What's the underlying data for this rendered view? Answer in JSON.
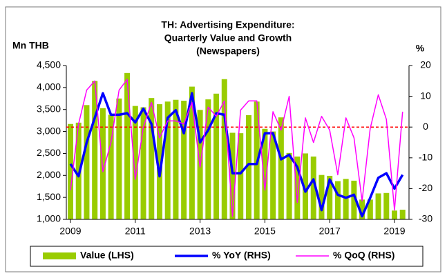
{
  "chart_data": {
    "type": "bar-line",
    "title": [
      "TH: Advertising Expenditure:",
      "Quarterly Value and Growth",
      "(Newspapers)"
    ],
    "ylabel": "Mn THB",
    "y2label": "%",
    "categories": [
      "2009",
      null,
      null,
      null,
      null,
      null,
      null,
      null,
      "2011",
      null,
      null,
      null,
      null,
      null,
      null,
      null,
      "2013",
      null,
      null,
      null,
      null,
      null,
      null,
      null,
      "2015",
      null,
      null,
      null,
      null,
      null,
      null,
      null,
      "2017",
      null,
      null,
      null,
      null,
      null,
      null,
      null,
      "2019",
      null
    ],
    "series": [
      {
        "name": "Value (LHS)",
        "color": "#99cc00",
        "kind": "bar",
        "values": [
          3170,
          3200,
          3600,
          4150,
          3530,
          3380,
          3750,
          4330,
          3580,
          3550,
          3760,
          3620,
          3680,
          3720,
          3700,
          4020,
          3490,
          3730,
          3860,
          4190,
          2970,
          2960,
          3370,
          3680,
          3060,
          3000,
          3320,
          2510,
          2430,
          2500,
          2430,
          2010,
          1990,
          1870,
          1920,
          1880,
          1450,
          1450,
          1590,
          1600,
          1200,
          1220
        ]
      },
      {
        "name": "% YoY (RHS)",
        "color": "#0000ff",
        "kind": "line",
        "axis": "y2",
        "values": [
          -12,
          -16,
          -5,
          3,
          11,
          4,
          4,
          4.5,
          1.5,
          6,
          1,
          -16,
          3,
          5.5,
          -2,
          11,
          -5,
          -1,
          4.5,
          4,
          -15,
          -15,
          -12,
          -12,
          -2,
          -2,
          -10.5,
          -9,
          -13,
          -21,
          -17,
          -27,
          -17,
          -22,
          -23,
          -22,
          -29,
          -23,
          -16.5,
          -15,
          -20,
          -15.5
        ]
      },
      {
        "name": "% QoQ (RHS)",
        "color": "#ff00ff",
        "kind": "line",
        "axis": "y2",
        "values": [
          -20.5,
          1,
          12,
          15,
          -14.5,
          -5,
          12,
          15.5,
          -17,
          0,
          8,
          -3.5,
          2,
          2,
          1,
          8,
          -13,
          6.5,
          3.5,
          8.5,
          -29,
          5.5,
          8.5,
          8.5,
          -20.5,
          5,
          -1,
          10,
          -24.5,
          3,
          -5,
          3.5,
          -1,
          -15.5,
          3,
          -3.5,
          -24,
          -0.5,
          10.5,
          2.5,
          -27,
          5
        ]
      }
    ],
    "ylim": [
      1000,
      4500
    ],
    "yticks": [
      {
        "value": 1000,
        "label": "1,000"
      },
      {
        "value": 1500,
        "label": "1,500"
      },
      {
        "value": 2000,
        "label": "2,000"
      },
      {
        "value": 2500,
        "label": "2,500"
      },
      {
        "value": 3000,
        "label": "3,000"
      },
      {
        "value": 3500,
        "label": "3,500"
      },
      {
        "value": 4000,
        "label": "4,000"
      },
      {
        "value": 4500,
        "label": "4,500"
      }
    ],
    "y2lim": [
      -30,
      20
    ],
    "y2ticks": [
      -30,
      -20,
      -10,
      0,
      10,
      20
    ],
    "reference_line": {
      "value": 0,
      "axis": "y2",
      "color": "#ff0000"
    },
    "legend": "bottom"
  }
}
